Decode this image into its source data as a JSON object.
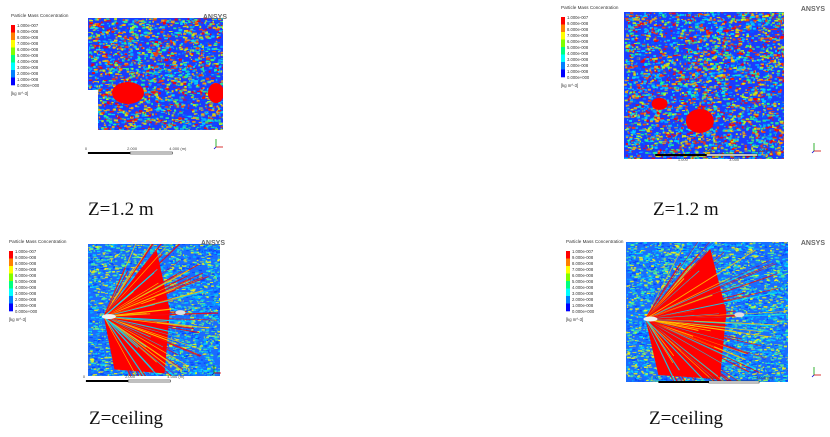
{
  "panels": [
    {
      "caption": "Z=1.2 m",
      "brand": "ANSYS",
      "legend_title": "Particle Mass Concentration",
      "legend_values": [
        "1.000e-007",
        "9.000e-008",
        "8.000e-008",
        "7.000e-008",
        "6.000e-008",
        "5.000e-008",
        "4.000e-008",
        "3.000e-008",
        "2.000e-008",
        "1.000e-008",
        "0.000e+000"
      ],
      "legend_unit": "[kg m^-3]",
      "scale_labels": [
        "0",
        "2.000",
        "4.000 (m)"
      ],
      "colors": [
        "#ff0000",
        "#ff8000",
        "#ffff00",
        "#80ff00",
        "#00ff80",
        "#00ffff",
        "#0080ff",
        "#0000ff"
      ]
    },
    {
      "caption": "Z=1.2 m",
      "brand": "ANSYS",
      "legend_title": "Particle Mass Concentration",
      "legend_values": [
        "1.000e-007",
        "9.000e-008",
        "8.000e-008",
        "7.000e-008",
        "6.000e-008",
        "5.000e-008",
        "4.000e-008",
        "3.000e-008",
        "2.000e-008",
        "1.000e-008",
        "0.000e+000"
      ],
      "legend_unit": "[kg m^-3]",
      "scale_labels": [
        "0",
        "2.000",
        "4.000 (m)",
        "1.000",
        "3.000"
      ],
      "colors": [
        "#ff0000",
        "#ff8000",
        "#ffff00",
        "#80ff00",
        "#00ff80",
        "#00ffff",
        "#0080ff",
        "#0000ff"
      ]
    },
    {
      "caption": "Z=ceiling",
      "brand": "ANSYS",
      "legend_title": "Particle Mass Concentration",
      "legend_values": [
        "1.000e-007",
        "9.000e-008",
        "8.000e-008",
        "7.000e-008",
        "6.000e-008",
        "5.000e-008",
        "4.000e-008",
        "3.000e-008",
        "2.000e-008",
        "1.000e-008",
        "0.000e+000"
      ],
      "legend_unit": "[kg m^-3]",
      "scale_labels": [
        "0",
        "2.000",
        "4.000 (m)"
      ],
      "colors": [
        "#ff0000",
        "#ff8000",
        "#ffff00",
        "#80ff00",
        "#00ff80",
        "#00ffff",
        "#0080ff",
        "#0000ff"
      ]
    },
    {
      "caption": "Z=ceiling",
      "brand": "ANSYS",
      "legend_title": "Particle Mass Concentration",
      "legend_values": [
        "1.000e-007",
        "9.000e-008",
        "8.000e-008",
        "7.000e-008",
        "6.000e-008",
        "5.000e-008",
        "4.000e-008",
        "3.000e-008",
        "2.000e-008",
        "1.000e-008",
        "0.000e+000"
      ],
      "legend_unit": "[kg m^-3]",
      "scale_labels": [
        "0",
        "2.000",
        "4.000 (m)"
      ],
      "colors": [
        "#ff0000",
        "#ff8000",
        "#ffff00",
        "#80ff00",
        "#00ff80",
        "#00ffff",
        "#0080ff",
        "#0000ff"
      ]
    }
  ]
}
